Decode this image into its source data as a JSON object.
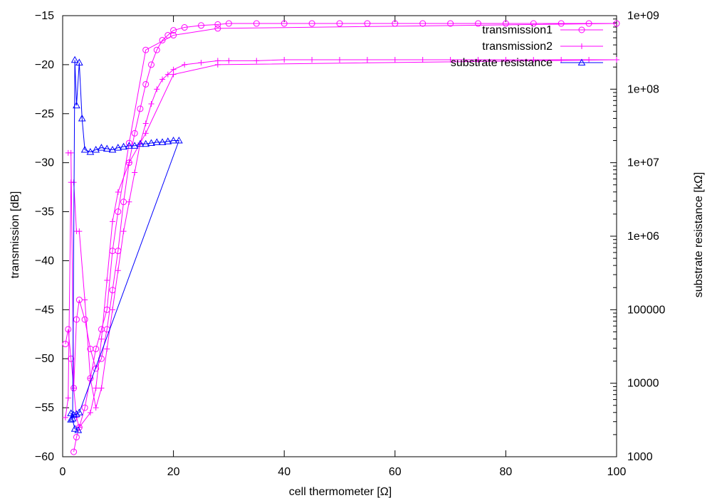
{
  "chart_data": {
    "type": "scatter",
    "title": "",
    "xlabel": "cell thermometer [Ω]",
    "ylabel": "transmission [dB]",
    "y2label": "substrate resistance [kΩ]",
    "xlim": [
      0,
      100
    ],
    "ylim": [
      -60,
      -15
    ],
    "y2lim": [
      1000,
      1000000000
    ],
    "y2scale": "log",
    "grid": false,
    "legend_position": "top-right",
    "x_ticks": [
      0,
      20,
      40,
      60,
      80,
      100
    ],
    "y_ticks": [
      -60,
      -55,
      -50,
      -45,
      -40,
      -35,
      -30,
      -25,
      -20,
      -15
    ],
    "y2_ticks": [
      {
        "value": 1000,
        "label": "1000"
      },
      {
        "value": 10000,
        "label": "10000"
      },
      {
        "value": 100000,
        "label": "100000"
      },
      {
        "value": 1000000,
        "label": "1e+06"
      },
      {
        "value": 10000000,
        "label": "1e+07"
      },
      {
        "value": 100000000,
        "label": "1e+08"
      },
      {
        "value": 1000000000,
        "label": "1e+09"
      }
    ],
    "series": [
      {
        "name": "transmission1",
        "marker": "circle",
        "color": "#ff00ff",
        "axis": "y",
        "x": [
          0.5,
          1,
          1.5,
          2,
          2.5,
          3,
          4,
          5,
          6,
          7,
          8,
          9,
          10,
          11,
          12,
          13,
          14,
          15,
          16,
          17,
          18,
          19,
          20,
          22,
          25,
          28,
          30,
          35,
          40,
          45,
          50,
          55,
          60,
          65,
          70,
          75,
          80,
          85,
          90,
          95,
          100,
          28,
          20,
          15,
          12,
          10,
          9,
          8,
          7,
          6,
          5,
          4,
          3,
          2.5,
          2
        ],
        "y": [
          -48.5,
          -47,
          -50,
          -53,
          -46,
          -44,
          -46,
          -49,
          -51,
          -50,
          -47,
          -43,
          -39,
          -34,
          -30,
          -27,
          -24.5,
          -22,
          -20,
          -18.5,
          -17.5,
          -17,
          -16.5,
          -16.2,
          -16,
          -15.9,
          -15.8,
          -15.8,
          -15.8,
          -15.8,
          -15.8,
          -15.8,
          -15.8,
          -15.8,
          -15.8,
          -15.8,
          -15.8,
          -15.8,
          -15.8,
          -15.8,
          -15.8,
          -16.3,
          -17,
          -18.5,
          -28,
          -35,
          -39,
          -45,
          -47,
          -49,
          -52,
          -55,
          -57,
          -58,
          -59.5
        ]
      },
      {
        "name": "transmission2",
        "marker": "plus",
        "color": "#ff00ff",
        "axis": "y",
        "x": [
          0.5,
          1,
          1.5,
          2,
          2.5,
          3,
          4,
          5,
          6,
          7,
          8,
          9,
          10,
          11,
          12,
          13,
          14,
          15,
          16,
          17,
          18,
          19,
          20,
          22,
          25,
          28,
          30,
          35,
          40,
          45,
          50,
          55,
          60,
          65,
          70,
          75,
          80,
          85,
          90,
          95,
          100,
          28,
          20,
          15,
          12,
          10,
          9,
          8,
          7,
          6,
          5,
          3,
          2.5,
          2,
          1.5,
          1
        ],
        "y": [
          -56,
          -54,
          -32,
          -32,
          -37,
          -37,
          -44,
          -52,
          -55,
          -53,
          -49,
          -45,
          -41,
          -37,
          -34,
          -31,
          -28,
          -26,
          -24,
          -22.5,
          -21.5,
          -21,
          -20.5,
          -20,
          -19.8,
          -19.6,
          -19.6,
          -19.6,
          -19.5,
          -19.5,
          -19.5,
          -19.5,
          -19.5,
          -19.5,
          -19.5,
          -19.5,
          -19.5,
          -19.5,
          -19.5,
          -19.5,
          -19.5,
          -20,
          -21,
          -27,
          -30,
          -33,
          -36,
          -42,
          -48,
          -53,
          -55.5,
          -57,
          -56,
          -53,
          -29,
          -29
        ]
      },
      {
        "name": "substrate resistance",
        "marker": "triangle",
        "color": "#0000ff",
        "axis": "y2",
        "x": [
          1.5,
          1.8,
          2.2,
          2.5,
          3.0,
          3.5,
          4,
          5,
          6,
          7,
          8,
          9,
          10,
          11,
          12,
          13,
          14,
          15,
          16,
          17,
          18,
          19,
          20,
          21,
          3,
          2.5,
          2,
          1.5,
          2.2,
          2.8
        ],
        "y": [
          3200,
          3300,
          250000000,
          60000000,
          230000000,
          40000000,
          15000000,
          14000000,
          15000000,
          16000000,
          15500000,
          15000000,
          16000000,
          16500000,
          17000000,
          17000000,
          18000000,
          18000000,
          18500000,
          19000000,
          19000000,
          19500000,
          20000000,
          20000000,
          4000,
          3800,
          3700,
          3900,
          2400,
          2300
        ]
      }
    ]
  }
}
